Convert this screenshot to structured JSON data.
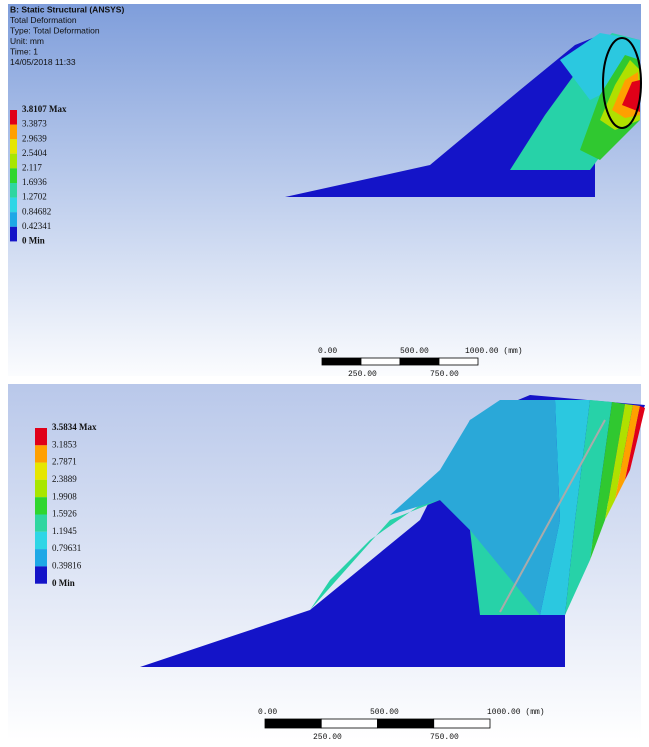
{
  "panels": [
    {
      "header": [
        "B: Static Structural (ANSYS)",
        "Total Deformation",
        "Type: Total Deformation",
        "Unit: mm",
        "Time: 1",
        "14/05/2018 11:33"
      ],
      "legend": [
        "3.8107 Max",
        "3.3873",
        "2.9639",
        "2.5404",
        "2.117",
        "1.6936",
        "1.2702",
        "0.84682",
        "0.42341",
        "0 Min"
      ],
      "scale_top": [
        "0.00",
        "500.00",
        "1000.00 (mm)"
      ],
      "scale_bottom": [
        "250.00",
        "750.00"
      ]
    },
    {
      "legend": [
        "3.5834 Max",
        "3.1853",
        "2.7871",
        "2.3889",
        "1.9908",
        "1.5926",
        "1.1945",
        "0.79631",
        "0.39816",
        "0 Min"
      ],
      "scale_top": [
        "0.00",
        "500.00",
        "1000.00 (mm)"
      ],
      "scale_bottom": [
        "250.00",
        "750.00"
      ]
    }
  ]
}
